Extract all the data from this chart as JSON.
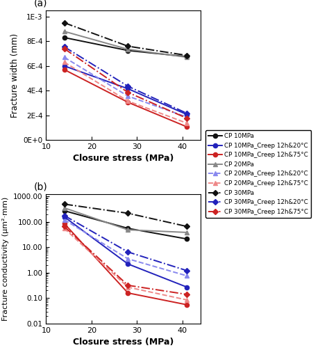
{
  "closure_stress": [
    14,
    28,
    41
  ],
  "subplot_a": {
    "ylabel": "Fracture width (mm)",
    "xlabel": "Closure stress (MPa)",
    "series": [
      {
        "label": "CP 10MPa",
        "color": "#111111",
        "ls": "-",
        "marker": "o",
        "lw": 1.4,
        "ms": 4.5,
        "mew": 1.0,
        "values": [
          0.00083,
          0.000725,
          0.000675
        ]
      },
      {
        "label": "CP 10MPa_Creep 12h&20°C",
        "color": "#2222bb",
        "ls": "-",
        "marker": "o",
        "lw": 1.4,
        "ms": 4.5,
        "mew": 1.0,
        "values": [
          0.0006,
          0.000415,
          0.000205
        ]
      },
      {
        "label": "CP 10MPa_Creep 12h&75°C",
        "color": "#cc2222",
        "ls": "-",
        "marker": "o",
        "lw": 1.4,
        "ms": 4.5,
        "mew": 1.0,
        "values": [
          0.00057,
          0.000305,
          0.000105
        ]
      },
      {
        "label": "CP 20MPa",
        "color": "#888888",
        "ls": "-",
        "marker": "^",
        "lw": 1.4,
        "ms": 4.5,
        "mew": 1.0,
        "values": [
          0.00088,
          0.000735,
          0.00067
        ]
      },
      {
        "label": "CP 20MPa_Creep 12h&20°C",
        "color": "#8888ee",
        "ls": "--",
        "marker": "^",
        "lw": 1.4,
        "ms": 4.5,
        "mew": 1.0,
        "values": [
          0.00067,
          0.000355,
          0.000185
        ]
      },
      {
        "label": "CP 20MPa_Creep 12h&75°C",
        "color": "#ee8888",
        "ls": "--",
        "marker": "^",
        "lw": 1.4,
        "ms": 4.5,
        "mew": 1.0,
        "values": [
          0.00063,
          0.000315,
          0.000135
        ]
      },
      {
        "label": "CP 30MPa",
        "color": "#111111",
        "ls": "-.",
        "marker": "D",
        "lw": 1.4,
        "ms": 4.0,
        "mew": 1.0,
        "values": [
          0.00095,
          0.00076,
          0.000685
        ]
      },
      {
        "label": "CP 30MPa_Creep 12h&20°C",
        "color": "#2222bb",
        "ls": "-.",
        "marker": "D",
        "lw": 1.4,
        "ms": 4.0,
        "mew": 1.0,
        "values": [
          0.000755,
          0.000435,
          0.000215
        ]
      },
      {
        "label": "CP 30MPa_Creep 12h&75°C",
        "color": "#cc2222",
        "ls": "-.",
        "marker": "D",
        "lw": 1.4,
        "ms": 4.0,
        "mew": 1.0,
        "values": [
          0.00074,
          0.000385,
          0.000175
        ]
      }
    ]
  },
  "subplot_b": {
    "ylabel": "Fracture conductivity (μm²·mm)",
    "xlabel": "Closure stress (MPa)",
    "series": [
      {
        "label": "CP 10MPa",
        "color": "#111111",
        "ls": "-",
        "marker": "o",
        "lw": 1.4,
        "ms": 4.5,
        "mew": 1.0,
        "values": [
          270,
          55,
          21
        ]
      },
      {
        "label": "CP 10MPa_Creep 12h&20°C",
        "color": "#2222bb",
        "ls": "-",
        "marker": "o",
        "lw": 1.4,
        "ms": 4.5,
        "mew": 1.0,
        "values": [
          155,
          2.2,
          0.27
        ]
      },
      {
        "label": "CP 10MPa_Creep 12h&75°C",
        "color": "#cc2222",
        "ls": "-",
        "marker": "o",
        "lw": 1.4,
        "ms": 4.5,
        "mew": 1.0,
        "values": [
          85,
          0.16,
          0.055
        ]
      },
      {
        "label": "CP 20MPa",
        "color": "#888888",
        "ls": "-",
        "marker": "^",
        "lw": 1.4,
        "ms": 4.5,
        "mew": 1.0,
        "values": [
          350,
          48,
          38
        ]
      },
      {
        "label": "CP 20MPa_Creep 12h&20°C",
        "color": "#8888ee",
        "ls": "--",
        "marker": "^",
        "lw": 1.4,
        "ms": 4.5,
        "mew": 1.0,
        "values": [
          120,
          3.5,
          0.75
        ]
      },
      {
        "label": "CP 20MPa_Creep 12h&75°C",
        "color": "#ee8888",
        "ls": "--",
        "marker": "^",
        "lw": 1.4,
        "ms": 4.5,
        "mew": 1.0,
        "values": [
          55,
          0.27,
          0.085
        ]
      },
      {
        "label": "CP 30MPa",
        "color": "#111111",
        "ls": "-.",
        "marker": "D",
        "lw": 1.4,
        "ms": 4.0,
        "mew": 1.0,
        "values": [
          490,
          215,
          65
        ]
      },
      {
        "label": "CP 30MPa_Creep 12h&20°C",
        "color": "#2222bb",
        "ls": "-.",
        "marker": "D",
        "lw": 1.4,
        "ms": 4.0,
        "mew": 1.0,
        "values": [
          175,
          6.5,
          1.2
        ]
      },
      {
        "label": "CP 30MPa_Creep 12h&75°C",
        "color": "#cc2222",
        "ls": "-.",
        "marker": "D",
        "lw": 1.4,
        "ms": 4.0,
        "mew": 1.0,
        "values": [
          65,
          0.32,
          0.14
        ]
      }
    ]
  },
  "legend_labels": [
    "CP 10MPa",
    "CP 10MPa_Creep 12h&20°C",
    "CP 10MPa_Creep 12h&75°C",
    "CP 20MPa",
    "CP 20MPa_Creep 12h&20°C",
    "CP 20MPa_Creep 12h&75°C",
    "CP 30MPa",
    "CP 30MPa_Creep 12h&20°C",
    "CP 30MPa_Creep 12h&75°C"
  ]
}
